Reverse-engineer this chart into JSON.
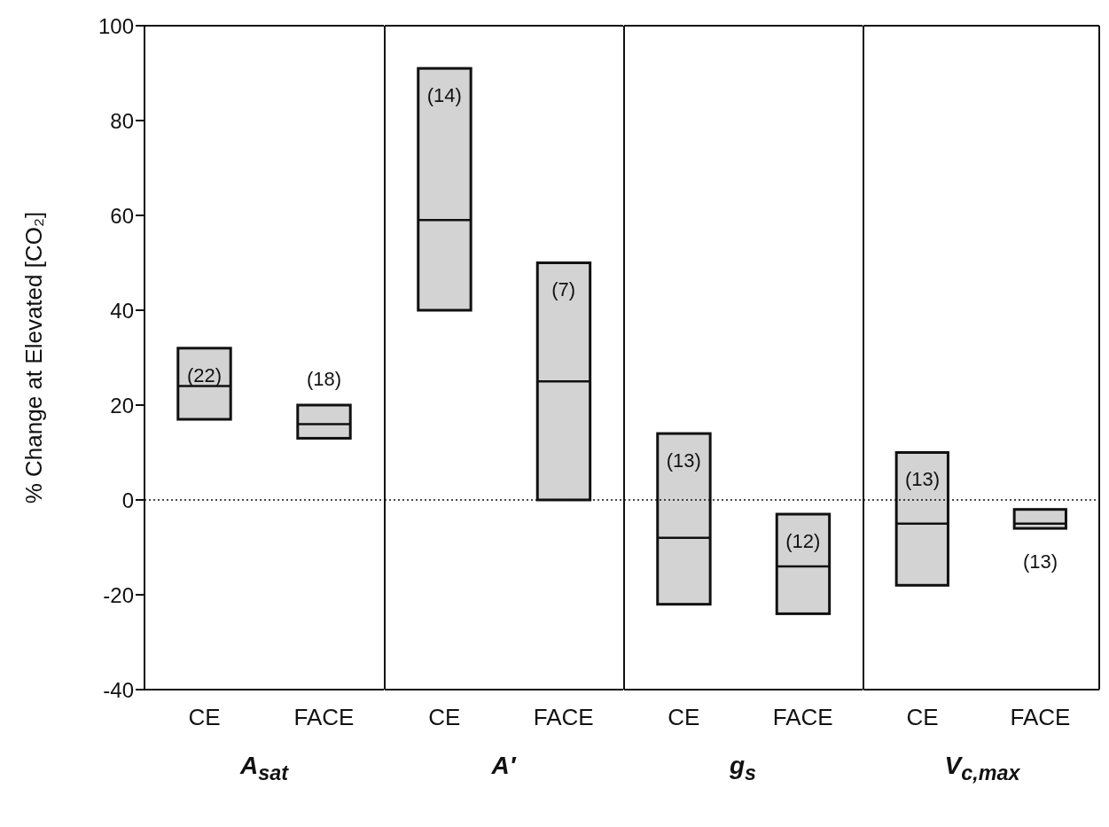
{
  "chart_data": [
    {
      "type": "box",
      "ylabel": "% Change at Elevated [CO₂]",
      "xlabel": "A$_{sat}$",
      "categories": [
        "CE",
        "FACE"
      ],
      "color": "#d3d3d3",
      "boxes": [
        {
          "low": 17,
          "q1": 17,
          "median": 24,
          "q3": 32,
          "high": 32
        },
        {
          "low": 13,
          "q1": 13,
          "median": 16,
          "q3": 20,
          "high": 20
        }
      ],
      "ylim": [
        -40,
        100
      ],
      "yticks": [
        -40,
        -20,
        0,
        20,
        40,
        60,
        80,
        100
      ],
      "ref_lines": [
        {
          "axis": "y",
          "value": 0,
          "line_style": "dotted"
        }
      ],
      "annotations": [
        "(22)",
        "(18)"
      ]
    },
    {
      "type": "box",
      "xlabel": "A′",
      "categories": [
        "CE",
        "FACE"
      ],
      "color": "#d3d3d3",
      "boxes": [
        {
          "low": 40,
          "q1": 40,
          "median": 59,
          "q3": 91,
          "high": 91
        },
        {
          "low": 0,
          "q1": 0,
          "median": 25,
          "q3": 50,
          "high": 50
        }
      ],
      "ylim": [
        -40,
        100
      ],
      "yticks": [
        -40,
        -20,
        0,
        20,
        40,
        60,
        80,
        100
      ],
      "tick_labels": "x",
      "ref_lines": [
        {
          "axis": "y",
          "value": 0,
          "line_style": "dotted"
        }
      ],
      "annotations": [
        "(14)",
        "(7)"
      ]
    },
    {
      "type": "box",
      "xlabel": "g$_{s}$",
      "categories": [
        "CE",
        "FACE"
      ],
      "color": "#d3d3d3",
      "boxes": [
        {
          "low": -22,
          "q1": -22,
          "median": -8,
          "q3": 14,
          "high": 14
        },
        {
          "low": -24,
          "q1": -24,
          "median": -14,
          "q3": -3,
          "high": -3
        }
      ],
      "ylim": [
        -40,
        100
      ],
      "yticks": [
        -40,
        -20,
        0,
        20,
        40,
        60,
        80,
        100
      ],
      "tick_labels": "x",
      "ref_lines": [
        {
          "axis": "y",
          "value": 0,
          "line_style": "dotted"
        }
      ],
      "annotations": [
        "(13)",
        "(12)"
      ]
    },
    {
      "type": "box",
      "xlabel": "V$_{c,max}$",
      "categories": [
        "CE",
        "FACE"
      ],
      "color": "#d3d3d3",
      "boxes": [
        {
          "low": -18,
          "q1": -18,
          "median": -5,
          "q3": 10,
          "high": 10
        },
        {
          "low": -6,
          "q1": -6,
          "median": -5,
          "q3": -2,
          "high": -2
        }
      ],
      "ylim": [
        -40,
        100
      ],
      "yticks": [
        -40,
        -20,
        0,
        20,
        40,
        60,
        80,
        100
      ],
      "tick_labels": "x",
      "ref_lines": [
        {
          "axis": "y",
          "value": 0,
          "line_style": "dotted"
        }
      ],
      "annotations": [
        "(13)",
        "(13)"
      ]
    }
  ]
}
